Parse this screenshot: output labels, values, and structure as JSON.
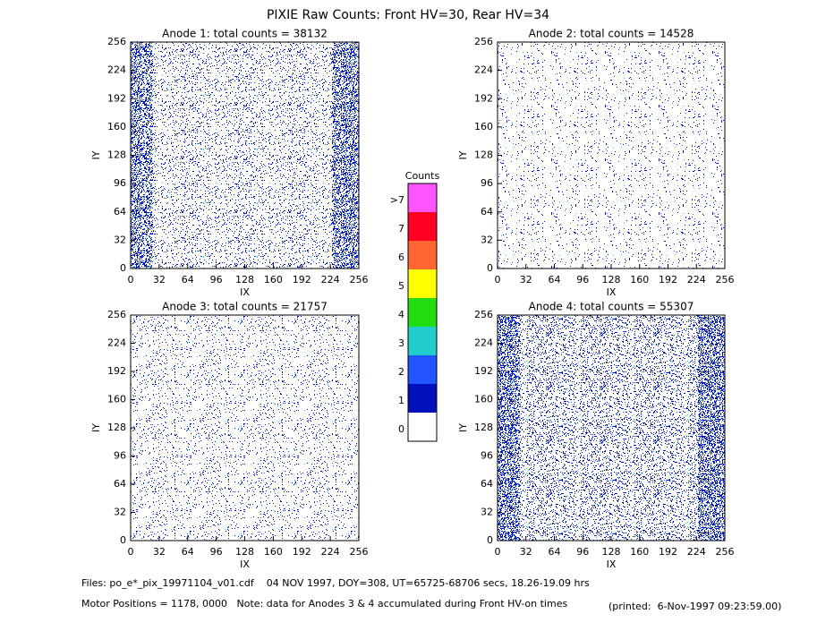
{
  "title": "PIXIE Raw Counts:  Front HV=30, Rear HV=34",
  "chart_data": [
    {
      "type": "heatmap",
      "title": "Anode 1: total counts = 38132",
      "xlabel": "IX",
      "ylabel": "IY",
      "xlim": [
        0,
        256
      ],
      "ylim": [
        0,
        256
      ],
      "xticks": [
        0,
        32,
        64,
        96,
        128,
        160,
        192,
        224,
        256
      ],
      "yticks": [
        0,
        32,
        64,
        96,
        128,
        160,
        192,
        224,
        256
      ]
    },
    {
      "type": "heatmap",
      "title": "Anode 2: total counts = 14528",
      "xlabel": "IX",
      "ylabel": "IY",
      "xlim": [
        0,
        256
      ],
      "ylim": [
        0,
        256
      ],
      "xticks": [
        0,
        32,
        64,
        96,
        128,
        160,
        192,
        224,
        256
      ],
      "yticks": [
        0,
        32,
        64,
        96,
        128,
        160,
        192,
        224,
        256
      ]
    },
    {
      "type": "heatmap",
      "title": "Anode 3: total counts = 21757",
      "xlabel": "IX",
      "ylabel": "IY",
      "xlim": [
        0,
        256
      ],
      "ylim": [
        0,
        256
      ],
      "xticks": [
        0,
        32,
        64,
        96,
        128,
        160,
        192,
        224,
        256
      ],
      "yticks": [
        0,
        32,
        64,
        96,
        128,
        160,
        192,
        224,
        256
      ]
    },
    {
      "type": "heatmap",
      "title": "Anode 4: total counts = 55307",
      "xlabel": "IX",
      "ylabel": "IY",
      "xlim": [
        0,
        256
      ],
      "ylim": [
        0,
        256
      ],
      "xticks": [
        0,
        32,
        64,
        96,
        128,
        160,
        192,
        224,
        256
      ],
      "yticks": [
        0,
        32,
        64,
        96,
        128,
        160,
        192,
        224,
        256
      ]
    }
  ],
  "colorbar": {
    "title": "Counts",
    "labels": [
      ">7",
      "7",
      "6",
      "5",
      "4",
      "3",
      "2",
      "1",
      "0"
    ],
    "colors": [
      "#ff55ff",
      "#ff0022",
      "#ff6633",
      "#ffff00",
      "#22dd11",
      "#22cccc",
      "#2255ff",
      "#0011bb",
      "#ffffff"
    ]
  },
  "footer": {
    "files": "Files: po_e*_pix_19971104_v01.cdf    04 NOV 1997, DOY=308, UT=65725-68706 secs, 18.26-19.09 hrs",
    "motor": "Motor Positions = 1178, 0000   Note: data for Anodes 3 & 4 accumulated during Front HV-on times",
    "printed": "(printed:  6-Nov-1997 09:23:59.00)"
  }
}
